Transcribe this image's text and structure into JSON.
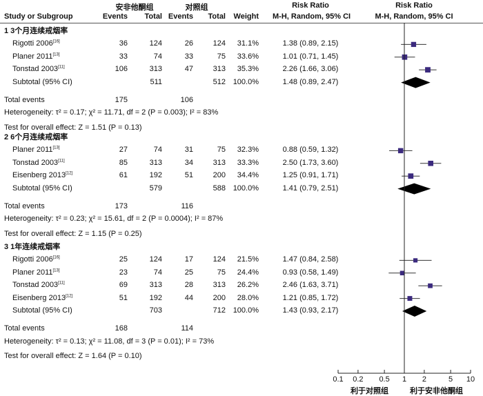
{
  "header": {
    "group1": "安非他酮组",
    "group2": "对照组",
    "rr1_title": "Risk Ratio",
    "rr1_sub": "M-H, Random, 95% CI",
    "rr2_title": "Risk Ratio",
    "rr2_sub": "M-H, Random, 95% CI",
    "col_study": "Study or Subgroup",
    "col_events1": "Events",
    "col_total1": "Total",
    "col_events2": "Events",
    "col_total2": "Total",
    "col_weight": "Weight"
  },
  "axis": {
    "label_left": "利于对照组",
    "label_right": "利于安非他酮组"
  },
  "chart_data": {
    "type": "forest",
    "x_scale": "log",
    "x_ticks": [
      "0.1",
      "0.2",
      "0.5",
      "1",
      "2",
      "5",
      "10"
    ],
    "xlim": [
      0.1,
      10
    ],
    "reference_line": 1,
    "subgroups": [
      {
        "title": "1 3个月连续戒烟率",
        "studies": [
          {
            "name": "Rigotti 2006",
            "ref": "[16]",
            "e1": "36",
            "t1": "124",
            "e2": "26",
            "t2": "124",
            "weight": "31.1%",
            "ci": "1.38 (0.89, 2.15)",
            "rr": 1.38,
            "lo": 0.89,
            "hi": 2.15
          },
          {
            "name": "Planer 2011",
            "ref": "[13]",
            "e1": "33",
            "t1": "74",
            "e2": "33",
            "t2": "75",
            "weight": "33.6%",
            "ci": "1.01 (0.71, 1.45)",
            "rr": 1.01,
            "lo": 0.71,
            "hi": 1.45
          },
          {
            "name": "Tonstad 2003",
            "ref": "[11]",
            "e1": "106",
            "t1": "313",
            "e2": "47",
            "t2": "313",
            "weight": "35.3%",
            "ci": "2.26 (1.66, 3.06)",
            "rr": 2.26,
            "lo": 1.66,
            "hi": 3.06
          }
        ],
        "subtotal": {
          "label": "Subtotal (95% CI)",
          "t1": "511",
          "t2": "512",
          "weight": "100.0%",
          "ci": "1.48 (0.89, 2.47)",
          "rr": 1.48,
          "lo": 0.89,
          "hi": 2.47
        },
        "total_events": {
          "label": "Total events",
          "e1": "175",
          "e2": "106"
        },
        "heterogeneity": "Heterogeneity: τ² = 0.17; χ² = 11.71, df = 2 (P = 0.003); I² = 83%",
        "overall": "Test for overall effect: Z = 1.51 (P = 0.13)"
      },
      {
        "title": "2 6个月连续戒烟率",
        "studies": [
          {
            "name": "Planer 2011",
            "ref": "[13]",
            "e1": "27",
            "t1": "74",
            "e2": "31",
            "t2": "75",
            "weight": "32.3%",
            "ci": "0.88 (0.59, 1.32)",
            "rr": 0.88,
            "lo": 0.59,
            "hi": 1.32
          },
          {
            "name": "Tonstad 2003",
            "ref": "[11]",
            "e1": "85",
            "t1": "313",
            "e2": "34",
            "t2": "313",
            "weight": "33.3%",
            "ci": "2.50 (1.73, 3.60)",
            "rr": 2.5,
            "lo": 1.73,
            "hi": 3.6
          },
          {
            "name": "Eisenberg 2013",
            "ref": "[12]",
            "e1": "61",
            "t1": "192",
            "e2": "51",
            "t2": "200",
            "weight": "34.4%",
            "ci": "1.25 (0.91, 1.71)",
            "rr": 1.25,
            "lo": 0.91,
            "hi": 1.71
          }
        ],
        "subtotal": {
          "label": "Subtotal (95% CI)",
          "t1": "579",
          "t2": "588",
          "weight": "100.0%",
          "ci": "1.41 (0.79, 2.51)",
          "rr": 1.41,
          "lo": 0.79,
          "hi": 2.51
        },
        "total_events": {
          "label": "Total events",
          "e1": "173",
          "e2": "116"
        },
        "heterogeneity": "Heterogeneity: τ² = 0.23; χ² = 15.61, df = 2 (P = 0.0004); I² = 87%",
        "overall": "Test for overall effect: Z = 1.15 (P = 0.25)"
      },
      {
        "title": "3 1年连续戒烟率",
        "studies": [
          {
            "name": "Rigotti 2006",
            "ref": "[16]",
            "e1": "25",
            "t1": "124",
            "e2": "17",
            "t2": "124",
            "weight": "21.5%",
            "ci": "1.47 (0.84, 2.58)",
            "rr": 1.47,
            "lo": 0.84,
            "hi": 2.58
          },
          {
            "name": "Planer 2011",
            "ref": "[13]",
            "e1": "23",
            "t1": "74",
            "e2": "25",
            "t2": "75",
            "weight": "24.4%",
            "ci": "0.93 (0.58, 1.49)",
            "rr": 0.93,
            "lo": 0.58,
            "hi": 1.49
          },
          {
            "name": "Tonstad 2003",
            "ref": "[11]",
            "e1": "69",
            "t1": "313",
            "e2": "28",
            "t2": "313",
            "weight": "26.2%",
            "ci": "2.46 (1.63, 3.71)",
            "rr": 2.46,
            "lo": 1.63,
            "hi": 3.71
          },
          {
            "name": "Eisenberg 2013",
            "ref": "[12]",
            "e1": "51",
            "t1": "192",
            "e2": "44",
            "t2": "200",
            "weight": "28.0%",
            "ci": "1.21 (0.85, 1.72)",
            "rr": 1.21,
            "lo": 0.85,
            "hi": 1.72
          }
        ],
        "subtotal": {
          "label": "Subtotal (95% CI)",
          "t1": "703",
          "t2": "712",
          "weight": "100.0%",
          "ci": "1.43 (0.93, 2.17)",
          "rr": 1.43,
          "lo": 0.93,
          "hi": 2.17
        },
        "total_events": {
          "label": "Total events",
          "e1": "168",
          "e2": "114"
        },
        "heterogeneity": "Heterogeneity: τ² = 0.13; χ² = 11.08, df = 3 (P = 0.01); I² = 73%",
        "overall": "Test for overall effect: Z = 1.64 (P = 0.10)"
      }
    ],
    "colors": {
      "square": "#3b2a7e",
      "diamond": "#000000",
      "line": "#333333"
    }
  }
}
